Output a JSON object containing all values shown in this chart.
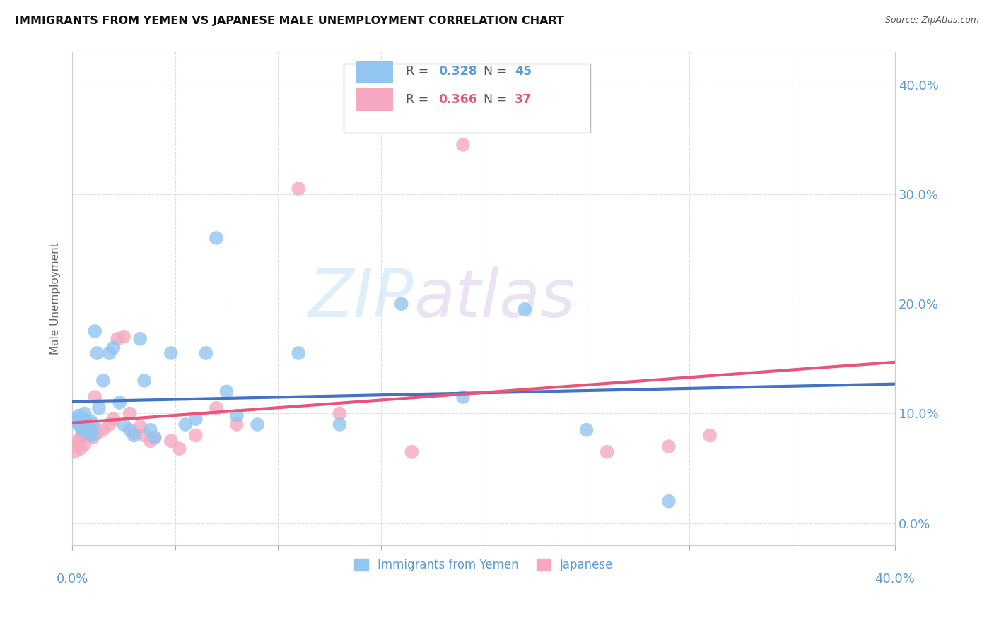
{
  "title": "IMMIGRANTS FROM YEMEN VS JAPANESE MALE UNEMPLOYMENT CORRELATION CHART",
  "source": "Source: ZipAtlas.com",
  "ylabel": "Male Unemployment",
  "ytick_values": [
    0.0,
    0.1,
    0.2,
    0.3,
    0.4
  ],
  "xlim": [
    0.0,
    0.4
  ],
  "ylim": [
    -0.02,
    0.43
  ],
  "blue_r": "0.328",
  "blue_n": "45",
  "pink_r": "0.366",
  "pink_n": "37",
  "blue_color": "#92C5F0",
  "pink_color": "#F5A8C0",
  "blue_line_color": "#4472C4",
  "pink_line_color": "#E8557A",
  "watermark_zip": "ZIP",
  "watermark_atlas": "atlas",
  "legend_label_blue": "Immigrants from Yemen",
  "legend_label_pink": "Japanese",
  "blue_scatter_x": [
    0.001,
    0.002,
    0.003,
    0.003,
    0.004,
    0.004,
    0.005,
    0.005,
    0.006,
    0.006,
    0.007,
    0.008,
    0.008,
    0.009,
    0.01,
    0.01,
    0.011,
    0.012,
    0.013,
    0.015,
    0.018,
    0.02,
    0.023,
    0.025,
    0.028,
    0.03,
    0.033,
    0.035,
    0.038,
    0.04,
    0.048,
    0.055,
    0.06,
    0.065,
    0.07,
    0.075,
    0.08,
    0.09,
    0.11,
    0.13,
    0.16,
    0.19,
    0.22,
    0.25,
    0.29
  ],
  "blue_scatter_y": [
    0.095,
    0.093,
    0.098,
    0.09,
    0.092,
    0.088,
    0.095,
    0.085,
    0.1,
    0.095,
    0.09,
    0.085,
    0.082,
    0.093,
    0.09,
    0.08,
    0.175,
    0.155,
    0.105,
    0.13,
    0.155,
    0.16,
    0.11,
    0.09,
    0.085,
    0.08,
    0.168,
    0.13,
    0.085,
    0.078,
    0.155,
    0.09,
    0.095,
    0.155,
    0.26,
    0.12,
    0.098,
    0.09,
    0.155,
    0.09,
    0.2,
    0.115,
    0.195,
    0.085,
    0.02
  ],
  "pink_scatter_x": [
    0.001,
    0.002,
    0.003,
    0.004,
    0.004,
    0.005,
    0.005,
    0.006,
    0.007,
    0.008,
    0.009,
    0.01,
    0.011,
    0.012,
    0.015,
    0.018,
    0.02,
    0.022,
    0.025,
    0.028,
    0.03,
    0.033,
    0.035,
    0.038,
    0.04,
    0.048,
    0.052,
    0.06,
    0.07,
    0.08,
    0.11,
    0.13,
    0.165,
    0.19,
    0.26,
    0.29,
    0.31
  ],
  "pink_scatter_y": [
    0.065,
    0.07,
    0.075,
    0.068,
    0.078,
    0.085,
    0.082,
    0.072,
    0.088,
    0.08,
    0.085,
    0.078,
    0.115,
    0.082,
    0.085,
    0.09,
    0.095,
    0.168,
    0.17,
    0.1,
    0.082,
    0.088,
    0.08,
    0.075,
    0.078,
    0.075,
    0.068,
    0.08,
    0.105,
    0.09,
    0.305,
    0.1,
    0.065,
    0.345,
    0.065,
    0.07,
    0.08
  ],
  "grid_color": "#DDDDDD",
  "background_color": "#FFFFFF",
  "title_fontsize": 11.5,
  "axis_color": "#5B9BD5",
  "tick_color": "#5B9BD5"
}
